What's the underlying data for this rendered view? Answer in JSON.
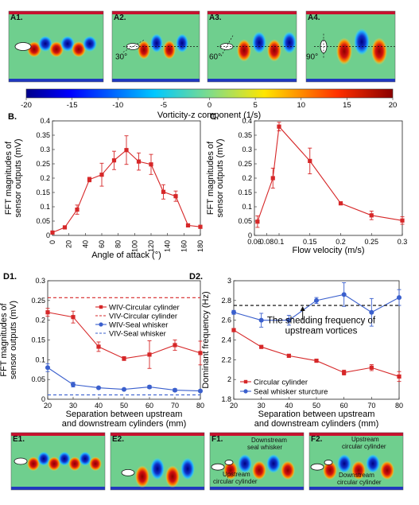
{
  "panels": {
    "A1": {
      "label": "A1."
    },
    "A2": {
      "label": "A2.",
      "angle": "30°"
    },
    "A3": {
      "label": "A3.",
      "angle": "60°"
    },
    "A4": {
      "label": "A4.",
      "angle": "90°"
    },
    "E1": {
      "label": "E1."
    },
    "E2": {
      "label": "E2."
    },
    "F1": {
      "label": "F1.",
      "ann_downstream": "Downstream",
      "ann_downstream2": "seal whisker",
      "ann_upstream": "Upstream",
      "ann_upstream2": "circular cylinder"
    },
    "F2": {
      "label": "F2.",
      "ann_upstream": "Upstream",
      "ann_upstream2": "circular cylinder",
      "ann_downstream": "Downstream",
      "ann_downstream2": "circular cylinder"
    }
  },
  "colorbar": {
    "ticks": [
      "-20",
      "-15",
      "-10",
      "-5",
      "0",
      "5",
      "10",
      "15",
      "20"
    ],
    "label": "Vorticity-z component (1/s)"
  },
  "chart_data": [
    {
      "id": "B",
      "panel_label": "B.",
      "type": "line",
      "xlabel": "Angle of attack (°)",
      "ylabel_lines": [
        "FFT magnitudes of",
        "sensor outputs (mV)"
      ],
      "xlim": [
        0,
        180
      ],
      "ylim": [
        0,
        0.4
      ],
      "xticks": [
        0,
        20,
        40,
        60,
        80,
        100,
        120,
        140,
        160,
        180
      ],
      "xtick_labels": [
        "0",
        "20",
        "40",
        "60",
        "80",
        "100",
        "120",
        "140",
        "160",
        "180"
      ],
      "yticks": [
        0,
        0.05,
        0.1,
        0.15,
        0.2,
        0.25,
        0.3,
        0.35,
        0.4
      ],
      "ytick_labels": [
        "0",
        "0.05",
        "0.1",
        "0.15",
        "0.2",
        "0.25",
        "0.3",
        "0.35",
        "0.4"
      ],
      "series": [
        {
          "color": "#d62728",
          "marker": "square",
          "x": [
            0,
            15,
            30,
            45,
            60,
            75,
            90,
            105,
            120,
            135,
            150,
            165,
            180
          ],
          "y": [
            0.01,
            0.028,
            0.09,
            0.195,
            0.212,
            0.262,
            0.298,
            0.258,
            0.248,
            0.152,
            0.137,
            0.035,
            0.03
          ],
          "err": [
            0.005,
            0.005,
            0.016,
            0.008,
            0.04,
            0.032,
            0.05,
            0.03,
            0.035,
            0.025,
            0.018,
            0.004,
            0.004
          ]
        }
      ]
    },
    {
      "id": "C",
      "panel_label": "C.",
      "type": "line",
      "xlabel": "Flow velocity (m/s)",
      "ylabel_lines": [
        "FFT magnitudes of",
        "sensor outputs (mV)"
      ],
      "xlim": [
        0.06,
        0.3
      ],
      "ylim": [
        0,
        0.4
      ],
      "xticks": [
        0.06,
        0.08,
        0.1,
        0.15,
        0.2,
        0.25,
        0.3
      ],
      "xtick_labels": [
        "0.06",
        "0.08",
        "0.1",
        "0.15",
        "0.2",
        "0.25",
        "0.3"
      ],
      "yticks": [
        0,
        0.05,
        0.1,
        0.15,
        0.2,
        0.25,
        0.3,
        0.35,
        0.4
      ],
      "ytick_labels": [
        "0",
        "0.05",
        "0.1",
        "0.15",
        "0.2",
        "0.25",
        "0.3",
        "0.35",
        "0.4"
      ],
      "series": [
        {
          "color": "#d62728",
          "marker": "square",
          "x": [
            0.065,
            0.09,
            0.1,
            0.15,
            0.2,
            0.25,
            0.3
          ],
          "y": [
            0.048,
            0.2,
            0.38,
            0.26,
            0.112,
            0.07,
            0.052
          ],
          "err": [
            0.02,
            0.035,
            0.015,
            0.045,
            0.004,
            0.015,
            0.013
          ]
        }
      ]
    },
    {
      "id": "D1",
      "panel_label": "D1.",
      "type": "line",
      "xlabel_lines": [
        "Separation between upstream",
        "and downstream cylinders (mm)"
      ],
      "ylabel_lines": [
        "FFT magnitudes of",
        "sensor outputs (mV)"
      ],
      "xlim": [
        20,
        80
      ],
      "ylim": [
        0,
        0.3
      ],
      "xticks": [
        20,
        30,
        40,
        50,
        60,
        70,
        80
      ],
      "xtick_labels": [
        "20",
        "30",
        "40",
        "50",
        "60",
        "70",
        "80"
      ],
      "yticks": [
        0,
        0.05,
        0.1,
        0.15,
        0.2,
        0.25,
        0.3
      ],
      "ytick_labels": [
        "0",
        "0.05",
        "0.1",
        "0.15",
        "0.2",
        "0.25",
        "0.3"
      ],
      "legend": "top-right",
      "series": [
        {
          "name": "WIV-Circular cylinder",
          "color": "#d62728",
          "marker": "square",
          "x": [
            20,
            30,
            40,
            50,
            60,
            70,
            80
          ],
          "y": [
            0.22,
            0.208,
            0.133,
            0.103,
            0.113,
            0.137,
            0.117
          ],
          "err": [
            0.01,
            0.015,
            0.012,
            0.005,
            0.035,
            0.013,
            0.03
          ]
        },
        {
          "name": "VIV-Circular cylinder",
          "color": "#d62728",
          "dashed": true,
          "y_const": 0.257
        },
        {
          "name": "WIV-Seal whisker",
          "color": "#3a5fcd",
          "marker": "circle",
          "x": [
            20,
            30,
            40,
            50,
            60,
            70,
            80
          ],
          "y": [
            0.08,
            0.037,
            0.029,
            0.025,
            0.031,
            0.023,
            0.021
          ],
          "err": [
            0.01,
            0.006,
            0.003,
            0.002,
            0.004,
            0.004,
            0.003
          ]
        },
        {
          "name": "VIV-Seal whisker",
          "color": "#3a5fcd",
          "dashed": true,
          "y_const": 0.011
        }
      ]
    },
    {
      "id": "D2",
      "panel_label": "D2.",
      "type": "line",
      "xlabel_lines": [
        "Separation between upstream",
        "and downstream cylinders (mm)"
      ],
      "ylabel_lines": [
        "Dominant frequency (Hz)"
      ],
      "xlim": [
        20,
        80
      ],
      "ylim": [
        1.8,
        3
      ],
      "xticks": [
        20,
        30,
        40,
        50,
        60,
        70,
        80
      ],
      "xtick_labels": [
        "20",
        "30",
        "40",
        "50",
        "60",
        "70",
        "80"
      ],
      "yticks": [
        1.8,
        2,
        2.2,
        2.4,
        2.6,
        2.8,
        3
      ],
      "ytick_labels": [
        "1.8",
        "2",
        "2.2",
        "2.4",
        "2.6",
        "2.8",
        "3"
      ],
      "legend": "bottom-left",
      "annotation_lines": [
        "The shedding frequency of",
        "upstream vortices"
      ],
      "series": [
        {
          "name": "Circular cylinder",
          "color": "#d62728",
          "marker": "square",
          "x": [
            20,
            30,
            40,
            50,
            60,
            70,
            80
          ],
          "y": [
            2.5,
            2.33,
            2.24,
            2.19,
            2.07,
            2.12,
            2.03
          ],
          "err": [
            0,
            0,
            0,
            0,
            0.025,
            0.03,
            0.05
          ]
        },
        {
          "name": "Seal whisker sturcture",
          "color": "#3a5fcd",
          "marker": "circle",
          "x": [
            20,
            30,
            40,
            50,
            60,
            70,
            80
          ],
          "y": [
            2.68,
            2.6,
            2.6,
            2.8,
            2.86,
            2.68,
            2.83
          ],
          "err": [
            0.02,
            0.07,
            0.05,
            0.03,
            0.12,
            0.14,
            0.08
          ]
        },
        {
          "color": "#000000",
          "dashed": true,
          "y_const": 2.75
        }
      ]
    }
  ]
}
